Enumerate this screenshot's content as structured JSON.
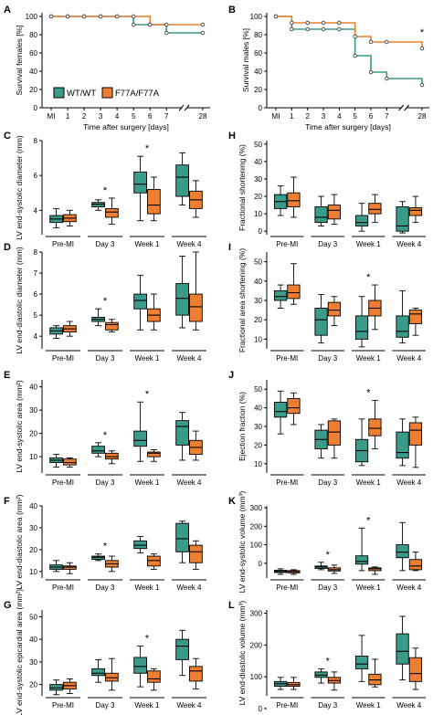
{
  "colors": {
    "wt": "#3a9b8a",
    "mut": "#ee7f32",
    "axis": "#000000"
  },
  "legend": {
    "wt_label": "WT/WT",
    "mut_label": "F77A/F77A"
  },
  "chart_data": [
    {
      "panel": "A",
      "type": "line",
      "ylabel": "Survival females [%]",
      "xlabel": "Time after surgery [days]",
      "xticks": [
        "MI",
        "1",
        "2",
        "3",
        "4",
        "5",
        "6",
        "7",
        "28"
      ],
      "yticks": [
        "0",
        "20",
        "40",
        "60",
        "80",
        "100"
      ],
      "ylim": [
        0,
        100
      ],
      "series": [
        {
          "name": "WT/WT",
          "color": "wt",
          "x": [
            "MI",
            "1",
            "2",
            "3",
            "4",
            "5",
            "6",
            "7",
            "28"
          ],
          "y": [
            100,
            100,
            100,
            100,
            100,
            91,
            91,
            82,
            82
          ]
        },
        {
          "name": "F77A/F77A",
          "color": "mut",
          "x": [
            "MI",
            "1",
            "2",
            "3",
            "4",
            "5",
            "6",
            "7",
            "28"
          ],
          "y": [
            100,
            100,
            100,
            100,
            100,
            100,
            91,
            91,
            91
          ]
        }
      ],
      "annotation": ""
    },
    {
      "panel": "B",
      "type": "line",
      "ylabel": "Survival males [%]",
      "xlabel": "Time after surgery [days]",
      "xticks": [
        "MI",
        "1",
        "2",
        "3",
        "4",
        "5",
        "6",
        "7",
        "28"
      ],
      "yticks": [
        "0",
        "20",
        "40",
        "60",
        "80",
        "100"
      ],
      "ylim": [
        0,
        100
      ],
      "series": [
        {
          "name": "WT/WT",
          "color": "wt",
          "x": [
            "MI",
            "1",
            "2",
            "3",
            "4",
            "5",
            "6",
            "7",
            "28"
          ],
          "y": [
            100,
            86,
            86,
            86,
            86,
            57,
            39,
            32,
            25
          ]
        },
        {
          "name": "F77A/F77A",
          "color": "mut",
          "x": [
            "MI",
            "1",
            "2",
            "3",
            "4",
            "5",
            "6",
            "7",
            "28"
          ],
          "y": [
            100,
            93,
            93,
            93,
            93,
            78,
            72,
            72,
            65
          ]
        }
      ],
      "annotation": "*"
    },
    {
      "panel": "C",
      "type": "box",
      "ylabel": "LV end-systolic diameter (mm)",
      "yticks": [
        4,
        6,
        8
      ],
      "ylim": [
        2.6,
        8.0
      ],
      "categories": [
        "Pre-MI",
        "Day 3",
        "Week 1",
        "Week 4"
      ],
      "significant": [
        "Day 3",
        "Week 1"
      ],
      "series": [
        {
          "name": "WT/WT",
          "color": "wt",
          "boxes": [
            [
              3.0,
              3.3,
              3.5,
              3.7,
              4.1
            ],
            [
              4.0,
              4.2,
              4.35,
              4.45,
              4.6
            ],
            [
              3.4,
              5.0,
              5.5,
              6.2,
              7.1
            ],
            [
              4.3,
              4.8,
              5.9,
              6.6,
              7.3
            ]
          ]
        },
        {
          "name": "F77A/F77A",
          "color": "mut",
          "boxes": [
            [
              3.1,
              3.35,
              3.55,
              3.75,
              4.0
            ],
            [
              3.2,
              3.6,
              3.9,
              4.1,
              4.7
            ],
            [
              3.4,
              3.8,
              4.3,
              5.2,
              5.9
            ],
            [
              3.6,
              4.1,
              4.6,
              5.1,
              5.7
            ]
          ]
        }
      ]
    },
    {
      "panel": "D",
      "type": "box",
      "ylabel": "LV end-diastolic diameter (mm)",
      "yticks": [
        4,
        5,
        6,
        7,
        8
      ],
      "ylim": [
        3.4,
        8.0
      ],
      "categories": [
        "Pre-MI",
        "Day 3",
        "Week 1",
        "Week 4"
      ],
      "significant": [
        "Day 3"
      ],
      "series": [
        {
          "name": "WT/WT",
          "color": "wt",
          "boxes": [
            [
              3.9,
              4.1,
              4.25,
              4.4,
              4.5
            ],
            [
              4.5,
              4.7,
              4.8,
              4.9,
              5.3
            ],
            [
              4.3,
              5.3,
              5.7,
              6.0,
              6.9
            ],
            [
              4.4,
              5.0,
              5.8,
              6.5,
              7.8
            ]
          ]
        },
        {
          "name": "F77A/F77A",
          "color": "mut",
          "boxes": [
            [
              4.0,
              4.2,
              4.35,
              4.5,
              4.7
            ],
            [
              4.2,
              4.3,
              4.55,
              4.65,
              4.8
            ],
            [
              4.3,
              4.7,
              5.0,
              5.3,
              6.0
            ],
            [
              4.3,
              4.7,
              5.4,
              6.0,
              8.0
            ]
          ]
        }
      ]
    },
    {
      "panel": "E",
      "type": "box",
      "ylabel": "LV end-systolic area (mm²)",
      "yticks": [
        10,
        20,
        30,
        40
      ],
      "ylim": [
        3,
        43
      ],
      "categories": [
        "Pre-MI",
        "Day 3",
        "Week 1",
        "Week 4"
      ],
      "significant": [
        "Day 3",
        "Week 1"
      ],
      "series": [
        {
          "name": "WT/WT",
          "color": "wt",
          "boxes": [
            [
              5.5,
              7.5,
              8.5,
              9.5,
              11
            ],
            [
              10,
              11.5,
              12.5,
              14.5,
              16
            ],
            [
              8,
              14.5,
              17,
              21,
              33.5
            ],
            [
              8.5,
              15,
              23,
              25.5,
              29
            ]
          ]
        },
        {
          "name": "F77A/F77A",
          "color": "mut",
          "boxes": [
            [
              5.5,
              6.5,
              7.5,
              9,
              9.5
            ],
            [
              7,
              9,
              10,
              11.5,
              12.5
            ],
            [
              8,
              10,
              11.5,
              12,
              13
            ],
            [
              8.5,
              11,
              14,
              17,
              21
            ]
          ]
        }
      ]
    },
    {
      "panel": "F",
      "type": "box",
      "ylabel": "LV end-diastolic area (mm²)",
      "yticks": [
        10,
        20,
        30,
        40
      ],
      "ylim": [
        7,
        40
      ],
      "categories": [
        "Pre-MI",
        "Day 3",
        "Week 1",
        "Week 4"
      ],
      "significant": [
        "Day 3"
      ],
      "series": [
        {
          "name": "WT/WT",
          "color": "wt",
          "boxes": [
            [
              10,
              11,
              12,
              13,
              15
            ],
            [
              15,
              15.5,
              16.5,
              17,
              18
            ],
            [
              18.5,
              20.5,
              22,
              24,
              26
            ],
            [
              14,
              19,
              25,
              32,
              33
            ]
          ]
        },
        {
          "name": "F77A/F77A",
          "color": "mut",
          "boxes": [
            [
              9,
              11,
              12,
              12.5,
              14
            ],
            [
              10,
              12,
              13.5,
              15,
              17
            ],
            [
              11,
              12.5,
              15,
              17,
              18
            ],
            [
              11,
              14,
              19,
              22,
              24
            ]
          ]
        }
      ]
    },
    {
      "panel": "G",
      "type": "box",
      "ylabel": "LV end-systolic epicardial area (mm²)",
      "yticks": [
        20,
        30,
        40,
        50
      ],
      "ylim": [
        15,
        53
      ],
      "categories": [
        "Pre-MI",
        "Day 3",
        "Week 1",
        "Week 4"
      ],
      "significant": [
        "Week 1"
      ],
      "series": [
        {
          "name": "WT/WT",
          "color": "wt",
          "boxes": [
            [
              15.5,
              17.5,
              18.5,
              20,
              22
            ],
            [
              21,
              24,
              25,
              27,
              31
            ],
            [
              19,
              25,
              28,
              32,
              37
            ],
            [
              24,
              31,
              37,
              40,
              44
            ]
          ]
        },
        {
          "name": "F77A/F77A",
          "color": "mut",
          "boxes": [
            [
              16,
              18,
              19.5,
              21,
              22.5
            ],
            [
              17.5,
              21.5,
              23,
              25,
              31.5
            ],
            [
              17.5,
              21,
              22.5,
              26,
              27
            ],
            [
              18,
              21.5,
              26,
              28,
              31.5
            ]
          ]
        }
      ]
    },
    {
      "panel": "H",
      "type": "box",
      "ylabel": "Fractional shortening (%)",
      "yticks": [
        0,
        10,
        20,
        30,
        40,
        50
      ],
      "ylim": [
        -2,
        52
      ],
      "categories": [
        "Pre-MI",
        "Day 3",
        "Week 1",
        "Week 4"
      ],
      "significant": [],
      "series": [
        {
          "name": "WT/WT",
          "color": "wt",
          "boxes": [
            [
              9,
              13,
              17,
              21,
              26
            ],
            [
              3,
              5,
              8,
              14,
              20
            ],
            [
              0,
              3,
              5,
              9,
              16
            ],
            [
              -1,
              0,
              3,
              14,
              17
            ]
          ]
        },
        {
          "name": "F77A/F77A",
          "color": "mut",
          "boxes": [
            [
              8,
              14,
              17.5,
              22,
              31
            ],
            [
              4,
              7,
              12,
              15,
              21
            ],
            [
              5,
              10,
              12.5,
              16,
              21
            ],
            [
              5,
              9,
              12,
              13.5,
              20
            ]
          ]
        }
      ]
    },
    {
      "panel": "I",
      "type": "box",
      "ylabel": "Fractional area shortening (%)",
      "yticks": [
        10,
        20,
        30,
        40,
        50
      ],
      "ylim": [
        5,
        55
      ],
      "categories": [
        "Pre-MI",
        "Day 3",
        "Week 1",
        "Week 4"
      ],
      "significant": [
        "Week 1"
      ],
      "series": [
        {
          "name": "WT/WT",
          "color": "wt",
          "boxes": [
            [
              26,
              30,
              32,
              35,
              38
            ],
            [
              8,
              12,
              20,
              26,
              33
            ],
            [
              6,
              10,
              14,
              22,
              32
            ],
            [
              8,
              11,
              14,
              22,
              35
            ]
          ]
        },
        {
          "name": "F77A/F77A",
          "color": "mut",
          "boxes": [
            [
              28,
              31,
              34,
              38,
              49
            ],
            [
              17,
              22,
              25,
              29,
              32
            ],
            [
              15,
              22,
              26,
              30,
              38
            ],
            [
              12,
              18,
              23,
              25,
              26
            ]
          ]
        }
      ]
    },
    {
      "panel": "J",
      "type": "box",
      "ylabel": "Ejection fraction (%)",
      "yticks": [
        10,
        20,
        30,
        40,
        50
      ],
      "ylim": [
        5,
        55
      ],
      "categories": [
        "Pre-MI",
        "Day 3",
        "Week 1",
        "Week 4"
      ],
      "significant": [
        "Week 1"
      ],
      "series": [
        {
          "name": "WT/WT",
          "color": "wt",
          "boxes": [
            [
              26,
              35,
              38,
              43,
              49
            ],
            [
              13,
              18,
              23,
              28,
              31
            ],
            [
              9,
              11,
              17,
              23,
              34
            ],
            [
              9,
              13,
              16,
              27,
              34
            ]
          ]
        },
        {
          "name": "F77A/F77A",
          "color": "mut",
          "boxes": [
            [
              31,
              37,
              40,
              45,
              48
            ],
            [
              13,
              20,
              27,
              33,
              34
            ],
            [
              18,
              25,
              29,
              34,
              44
            ],
            [
              8,
              20,
              28,
              32,
              35
            ]
          ]
        }
      ]
    },
    {
      "panel": "K",
      "type": "box",
      "ylabel": "LV end-systolic volume (mm³)",
      "yticks": [
        0,
        100,
        200,
        300
      ],
      "ylim": [
        -80,
        310
      ],
      "categories": [
        "Pre-MI",
        "Day 3",
        "Week 1",
        "Week 4"
      ],
      "significant": [
        "Day 3",
        "Week 1"
      ],
      "series": [
        {
          "name": "WT/WT",
          "color": "wt",
          "boxes": [
            [
              -60,
              -50,
              -45,
              -38,
              -30
            ],
            [
              -35,
              -28,
              -20,
              -15,
              5
            ],
            [
              -40,
              -5,
              10,
              40,
              190
            ],
            [
              -40,
              30,
              60,
              100,
              220
            ]
          ]
        },
        {
          "name": "F77A/F77A",
          "color": "mut",
          "boxes": [
            [
              -60,
              -52,
              -45,
              -40,
              -35
            ],
            [
              -55,
              -42,
              -35,
              -25,
              -10
            ],
            [
              -60,
              -40,
              -30,
              -25,
              -20
            ],
            [
              -40,
              -35,
              -15,
              20,
              60
            ]
          ]
        }
      ]
    },
    {
      "panel": "L",
      "type": "box",
      "ylabel": "LV end-diastolic volume (mm³)",
      "yticks": [
        0,
        100,
        200,
        300
      ],
      "ylim": [
        40,
        310
      ],
      "categories": [
        "Pre-MI",
        "Day 3",
        "Week 1",
        "Week 4"
      ],
      "significant": [
        "Day 3"
      ],
      "series": [
        {
          "name": "WT/WT",
          "color": "wt",
          "boxes": [
            [
              60,
              70,
              78,
              85,
              98
            ],
            [
              80,
              98,
              105,
              115,
              125
            ],
            [
              85,
              125,
              140,
              165,
              230
            ],
            [
              90,
              140,
              180,
              235,
              290
            ]
          ]
        },
        {
          "name": "F77A/F77A",
          "color": "mut",
          "boxes": [
            [
              60,
              70,
              75,
              82,
              98
            ],
            [
              58,
              80,
              88,
              98,
              115
            ],
            [
              68,
              75,
              90,
              108,
              155
            ],
            [
              60,
              85,
              110,
              160,
              190
            ]
          ]
        }
      ]
    }
  ]
}
